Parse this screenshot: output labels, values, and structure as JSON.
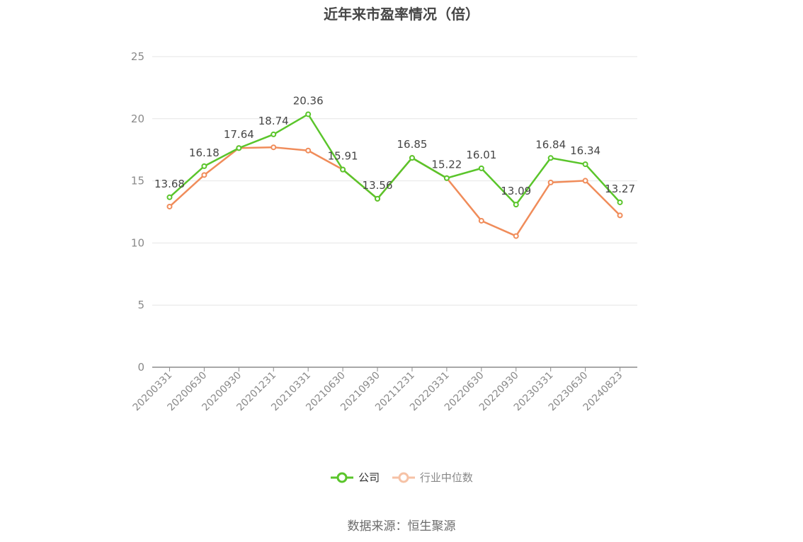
{
  "chart_data": {
    "type": "line",
    "title": "近年来市盈率情况（倍）",
    "categories": [
      "20200331",
      "20200630",
      "20200930",
      "20201231",
      "20210331",
      "20210630",
      "20210930",
      "20211231",
      "20220331",
      "20220630",
      "20220930",
      "20230331",
      "20230630",
      "20240823"
    ],
    "series": [
      {
        "name": "公司",
        "color": "#5ac52b",
        "values": [
          13.68,
          16.18,
          17.64,
          18.74,
          20.36,
          15.91,
          13.56,
          16.85,
          15.22,
          16.01,
          13.09,
          16.84,
          16.34,
          13.27
        ],
        "labels": [
          "13.68",
          "16.18",
          "17.64",
          "18.74",
          "20.36",
          "15.91",
          "13.56",
          "16.85",
          "15.22",
          "16.01",
          "13.09",
          "16.84",
          "16.34",
          "13.27"
        ]
      },
      {
        "name": "行业中位数",
        "color": "#f08c5a",
        "values": [
          12.93,
          15.47,
          17.64,
          17.7,
          17.44,
          15.91,
          13.56,
          16.85,
          15.22,
          11.79,
          10.56,
          14.87,
          15.01,
          12.22
        ]
      }
    ],
    "ylim": [
      0,
      25
    ],
    "yticks": [
      "0",
      "5",
      "10",
      "15",
      "20",
      "25"
    ],
    "grid": true,
    "legend_position": "bottom"
  },
  "source_text": "数据来源：恒生聚源"
}
